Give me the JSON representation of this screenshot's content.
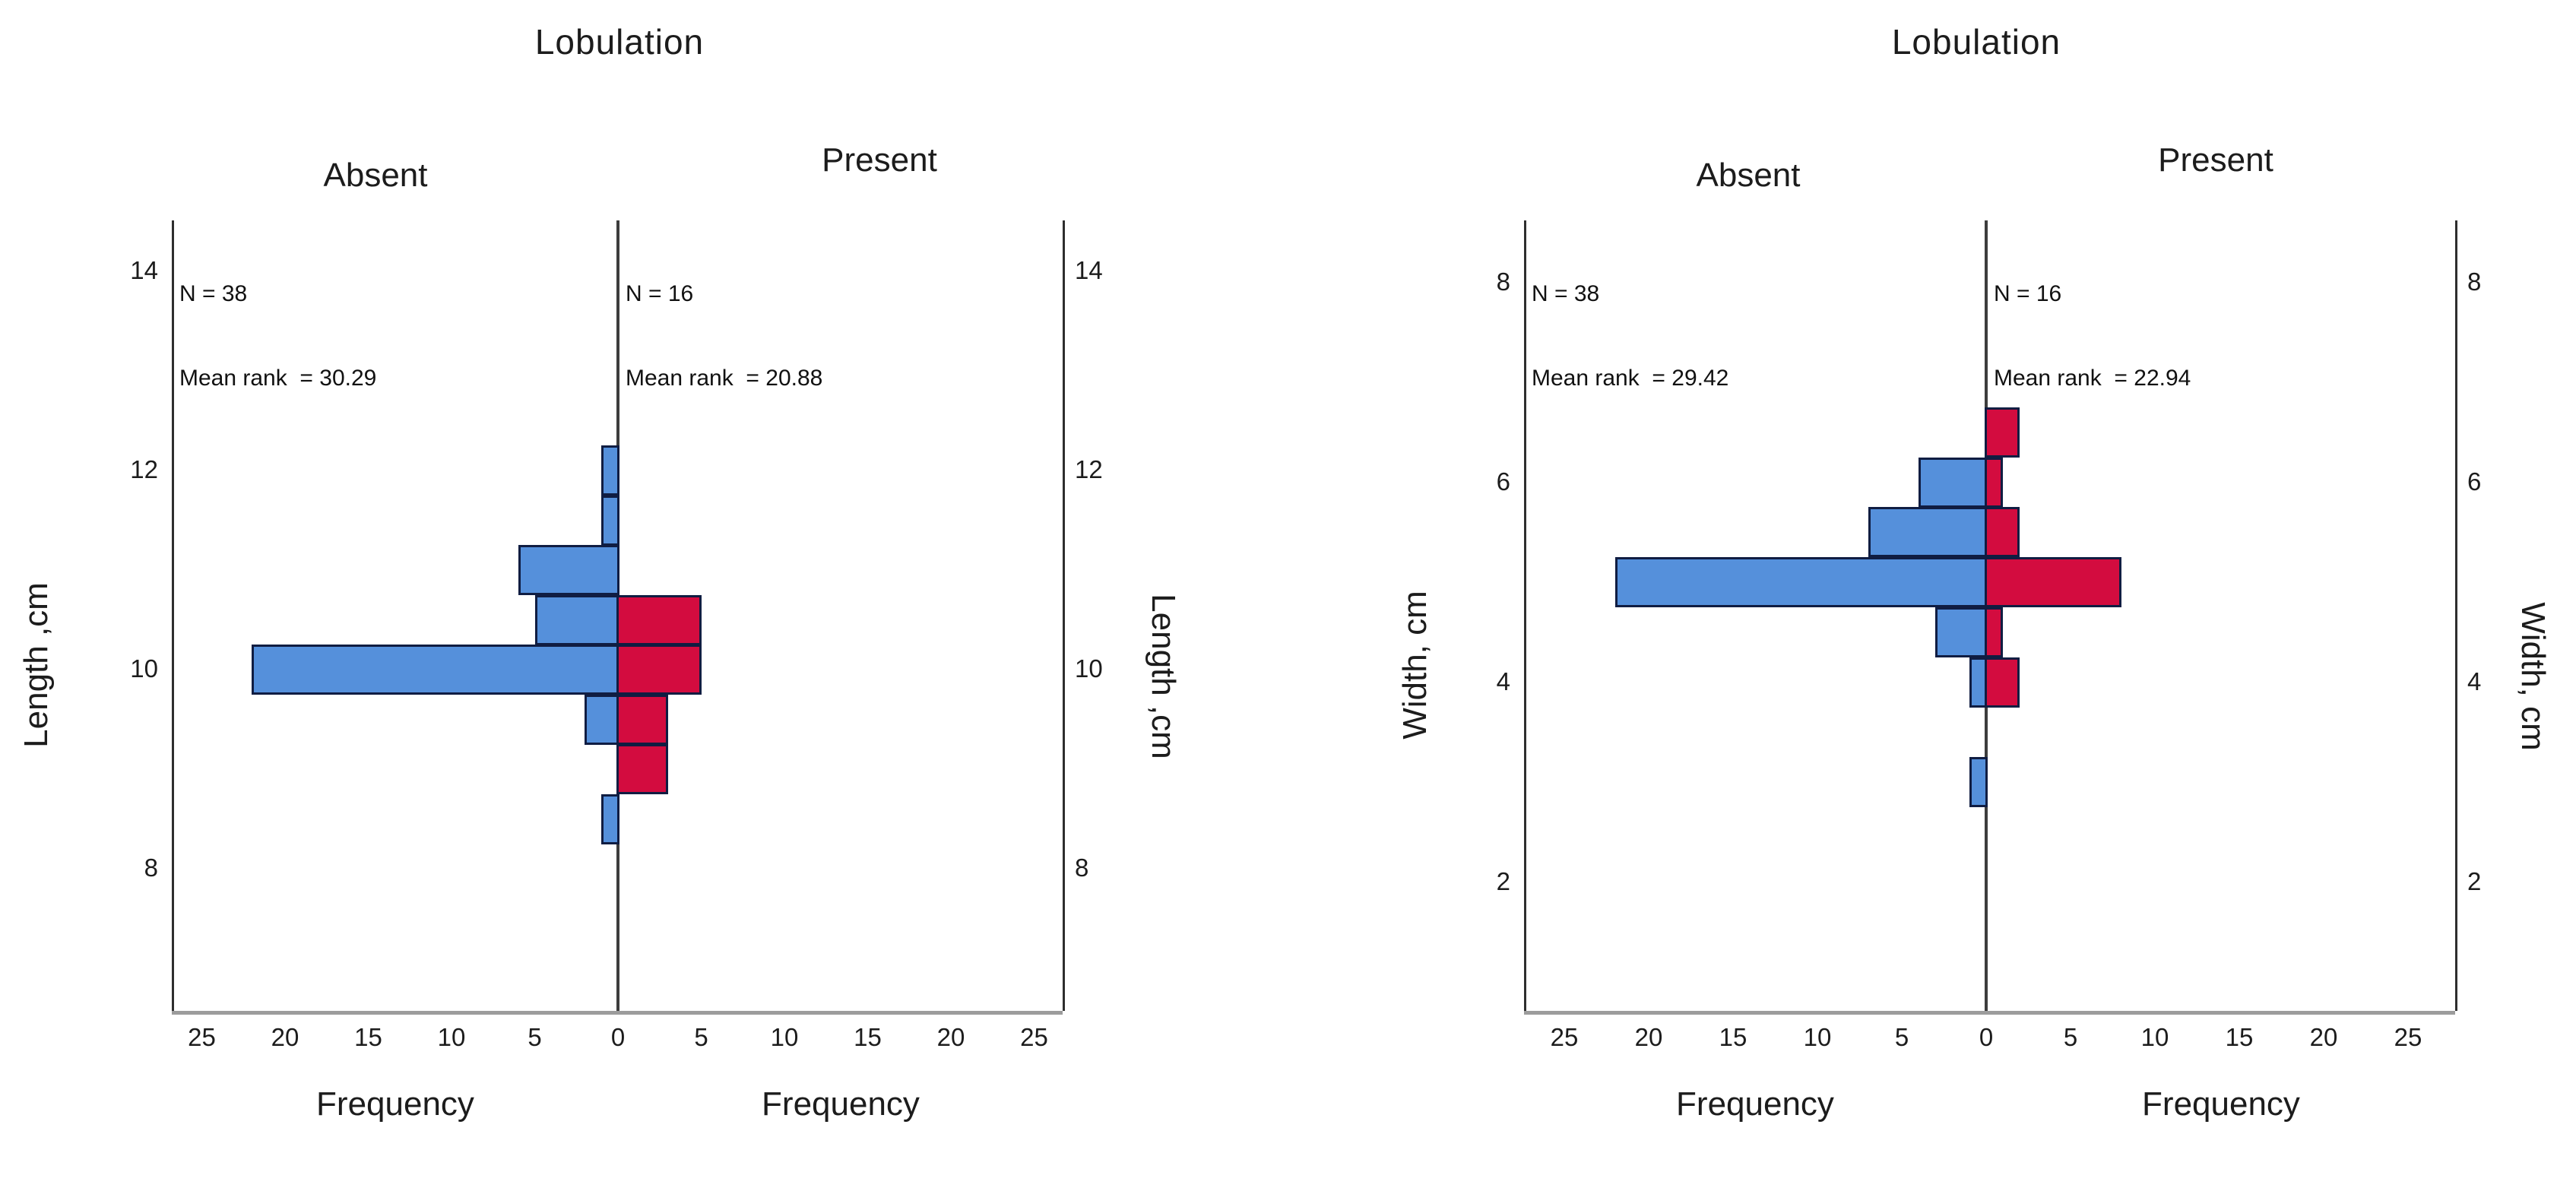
{
  "figure": {
    "background": "#ffffff",
    "text_color": "#1c1c1c",
    "bar_border_color": "#101d42",
    "absent_color": "#5590DB",
    "present_color": "#D30C3F"
  },
  "chart_data": [
    {
      "type": "bar",
      "variant": "back-to-back-histogram-pyramid",
      "title": "Lobulation",
      "panel_left": "Absent",
      "panel_right": "Present",
      "ylabel_left": "Length ,cm",
      "ylabel_right": "Length ,cm",
      "xlabel_left": "Frequency",
      "xlabel_right": "Frequency",
      "bin_width_cm": 0.5,
      "categories_cm": [
        12,
        11.5,
        11,
        10.5,
        10,
        9.5,
        9,
        8.5
      ],
      "series": [
        {
          "name": "Absent",
          "side": "left",
          "color": "#5590DB",
          "n": 38,
          "mean_rank": 30.29,
          "values": [
            1,
            1,
            6,
            5,
            22,
            2,
            0,
            1
          ]
        },
        {
          "name": "Present",
          "side": "right",
          "color": "#D30C3F",
          "n": 16,
          "mean_rank": 20.88,
          "values": [
            0,
            0,
            0,
            5,
            5,
            3,
            3,
            0
          ]
        }
      ],
      "annotations": {
        "left": [
          "N = 38",
          "Mean rank  = 30.29"
        ],
        "right": [
          "N = 16",
          "Mean rank  = 20.88"
        ]
      },
      "y_ticks": [
        14,
        12,
        10,
        8
      ],
      "x_ticks": [
        25,
        20,
        15,
        10,
        5,
        0,
        5,
        10,
        15,
        20,
        25
      ],
      "x_max_per_side": 25,
      "grid": false,
      "legend": false
    },
    {
      "type": "bar",
      "variant": "back-to-back-histogram-pyramid",
      "title": "Lobulation",
      "panel_left": "Absent",
      "panel_right": "Present",
      "ylabel_left": "Width, cm",
      "ylabel_right": "Width, cm",
      "xlabel_left": "Frequency",
      "xlabel_right": "Frequency",
      "bin_width_cm": 0.5,
      "categories_cm": [
        6.5,
        6,
        5.5,
        5,
        4.5,
        4,
        3.5,
        3
      ],
      "series": [
        {
          "name": "Absent",
          "side": "left",
          "color": "#5590DB",
          "n": 38,
          "mean_rank": 29.42,
          "values": [
            0,
            4,
            7,
            22,
            3,
            1,
            0,
            1
          ]
        },
        {
          "name": "Present",
          "side": "right",
          "color": "#D30C3F",
          "n": 16,
          "mean_rank": 22.94,
          "values": [
            2,
            1,
            2,
            8,
            1,
            2,
            0,
            0
          ]
        }
      ],
      "annotations": {
        "left": [
          "N = 38",
          "Mean rank  = 29.42"
        ],
        "right": [
          "N = 16",
          "Mean rank  = 22.94"
        ]
      },
      "y_ticks": [
        8,
        6,
        4,
        2
      ],
      "x_ticks": [
        25,
        20,
        15,
        10,
        5,
        0,
        5,
        10,
        15,
        20,
        25
      ],
      "x_max_per_side": 25,
      "grid": false,
      "legend": false
    }
  ]
}
